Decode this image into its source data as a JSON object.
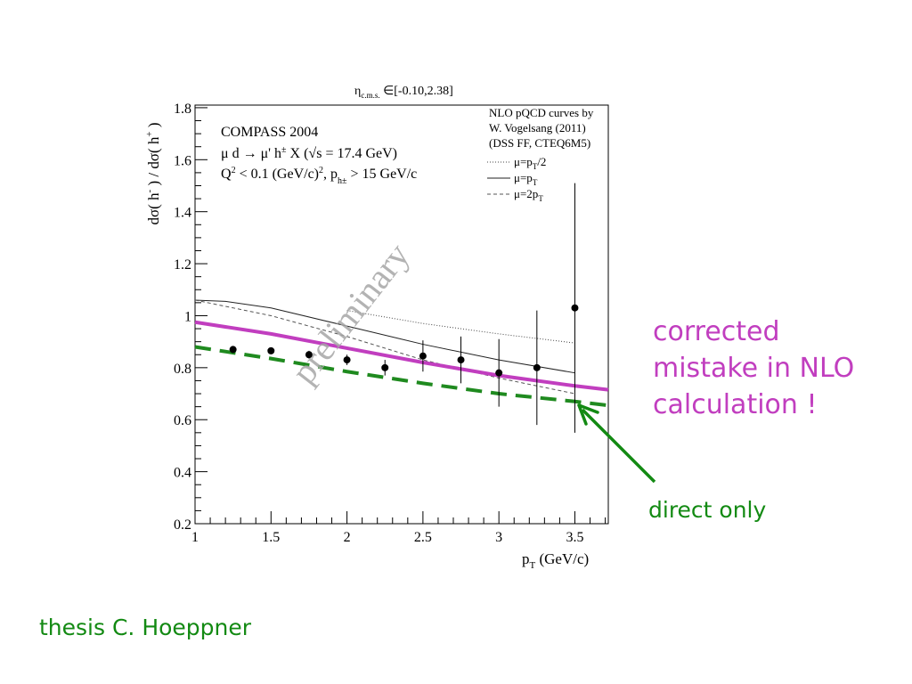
{
  "chart_data": {
    "type": "scatter",
    "header": "η_c.m.s. ∈[-0.10,2.38]",
    "xlabel": "p_T (GeV/c)",
    "ylabel": "dσ( h⁻ ) / dσ( h⁺ )",
    "xlim": [
      1,
      3.72
    ],
    "ylim": [
      0.2,
      1.81
    ],
    "x_ticks": [
      {
        "v": 1,
        "label": "1"
      },
      {
        "v": 1.5,
        "label": "1.5"
      },
      {
        "v": 2,
        "label": "2"
      },
      {
        "v": 2.5,
        "label": "2.5"
      },
      {
        "v": 3,
        "label": "3"
      },
      {
        "v": 3.5,
        "label": "3.5"
      }
    ],
    "y_ticks": [
      {
        "v": 0.2,
        "label": "0.2"
      },
      {
        "v": 0.4,
        "label": "0.4"
      },
      {
        "v": 0.6,
        "label": "0.6"
      },
      {
        "v": 0.8,
        "label": "0.8"
      },
      {
        "v": 1.0,
        "label": "1"
      },
      {
        "v": 1.2,
        "label": "1.2"
      },
      {
        "v": 1.4,
        "label": "1.4"
      },
      {
        "v": 1.6,
        "label": "1.6"
      },
      {
        "v": 1.8,
        "label": "1.8"
      }
    ],
    "info_lines": [
      "COMPASS 2004",
      "μ d → μ' h± X (√s = 17.4 GeV)",
      "Q² < 0.1 (GeV/c)², p_h± > 15 GeV/c"
    ],
    "legend_title": [
      "NLO pQCD curves by",
      "W. Vogelsang (2011)",
      "(DSS FF, CTEQ6M5)"
    ],
    "legend": [
      {
        "label": "μ=p_T/2",
        "style": "dotted"
      },
      {
        "label": "μ=p_T",
        "style": "solid"
      },
      {
        "label": "μ=2p_T",
        "style": "dashed"
      }
    ],
    "watermark": "preliminary",
    "data_points": [
      {
        "x": 1.25,
        "y": 0.87,
        "err": 0.01
      },
      {
        "x": 1.5,
        "y": 0.865,
        "err": 0.01
      },
      {
        "x": 1.75,
        "y": 0.85,
        "err": 0.015
      },
      {
        "x": 2.0,
        "y": 0.83,
        "err": 0.02
      },
      {
        "x": 2.25,
        "y": 0.8,
        "err": 0.03
      },
      {
        "x": 2.5,
        "y": 0.845,
        "err": 0.06
      },
      {
        "x": 2.75,
        "y": 0.83,
        "err": 0.09
      },
      {
        "x": 3.0,
        "y": 0.78,
        "err": 0.13
      },
      {
        "x": 3.25,
        "y": 0.8,
        "err": 0.22
      },
      {
        "x": 3.5,
        "y": 1.03,
        "err": 0.48
      }
    ],
    "series": [
      {
        "name": "μ=p_T/2",
        "style": "dotted",
        "color": "#444444",
        "x": [
          2.0,
          2.5,
          3.0,
          3.5
        ],
        "y": [
          1.02,
          0.97,
          0.93,
          0.895
        ]
      },
      {
        "name": "μ=p_T",
        "style": "solid",
        "color": "#222222",
        "x": [
          1.0,
          1.2,
          1.5,
          2.0,
          2.5,
          3.0,
          3.5
        ],
        "y": [
          1.06,
          1.055,
          1.03,
          0.96,
          0.89,
          0.83,
          0.78
        ]
      },
      {
        "name": "μ=2p_T",
        "style": "dashed",
        "color": "#555555",
        "x": [
          1.0,
          1.5,
          2.0,
          2.5,
          3.0,
          3.5
        ],
        "y": [
          1.06,
          1.0,
          0.92,
          0.83,
          0.76,
          0.7
        ]
      },
      {
        "name": "corrected",
        "style": "thick-solid",
        "color": "#c13ebf",
        "x": [
          1.0,
          1.5,
          2.0,
          2.5,
          3.0,
          3.5,
          3.72
        ],
        "y": [
          0.975,
          0.93,
          0.875,
          0.82,
          0.77,
          0.73,
          0.715
        ]
      },
      {
        "name": "direct only",
        "style": "thick-dashed",
        "color": "#1f8a1f",
        "x": [
          1.0,
          1.5,
          2.0,
          2.5,
          3.0,
          3.5,
          3.72
        ],
        "y": [
          0.88,
          0.835,
          0.785,
          0.74,
          0.7,
          0.67,
          0.655
        ]
      }
    ]
  },
  "annotations": {
    "corrected_lines": [
      "corrected",
      "mistake in NLO",
      "calculation !"
    ],
    "direct_only": "direct only",
    "credit": "thesis C. Hoeppner"
  },
  "colors": {
    "annotation_magenta": "#c13ebf",
    "annotation_green": "#138a13"
  }
}
